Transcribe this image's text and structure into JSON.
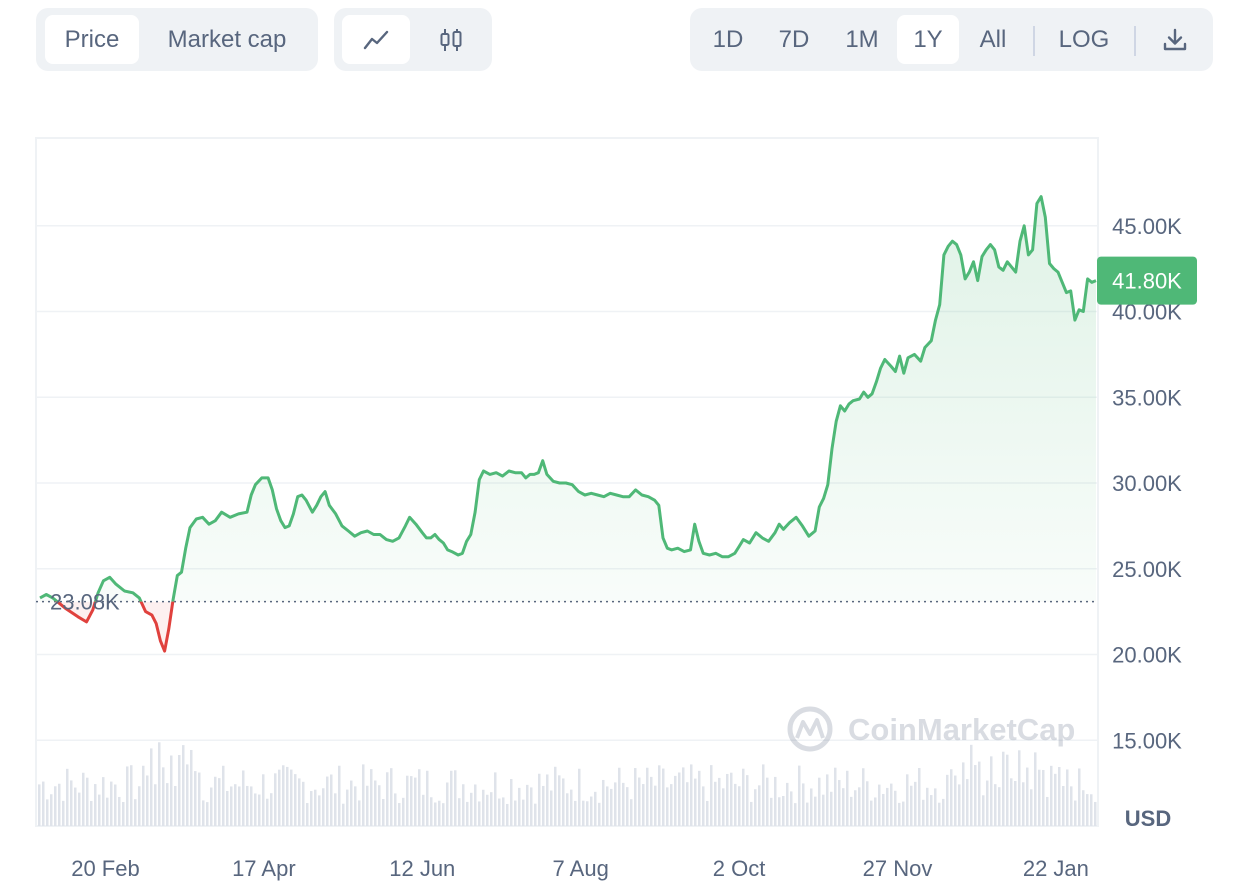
{
  "toolbar": {
    "metric_tabs": [
      "Price",
      "Market cap"
    ],
    "active_metric": "Price",
    "chart_types": [
      "line-chart-icon",
      "candlestick-icon"
    ],
    "active_chart_type": "line-chart-icon",
    "ranges": [
      "1D",
      "7D",
      "1M",
      "1Y",
      "All"
    ],
    "active_range": "1Y",
    "log_label": "LOG",
    "download_icon": "download-icon"
  },
  "colors": {
    "up": "#4fb877",
    "down": "#e0413d",
    "grid": "#eff2f5",
    "text": "#58667e",
    "badge": "#4fb877"
  },
  "chart_data": {
    "type": "area",
    "currency_label": "USD",
    "watermark": "CoinMarketCap",
    "baseline_label": "23.08K",
    "baseline_value": 23080,
    "current_label": "41.80K",
    "current_value": 41800,
    "ylim": [
      10000,
      50000
    ],
    "y_ticks": [
      15000,
      20000,
      25000,
      30000,
      35000,
      40000,
      45000
    ],
    "y_tick_labels": [
      "15.00K",
      "20.00K",
      "25.00K",
      "30.00K",
      "35.00K",
      "40.00K",
      "45.00K"
    ],
    "x_tick_labels": [
      "20 Feb",
      "17 Apr",
      "12 Jun",
      "7 Aug",
      "2 Oct",
      "27 Nov",
      "22 Jan"
    ],
    "x_tick_positions": [
      0.062,
      0.212,
      0.362,
      0.512,
      0.662,
      0.812,
      0.962
    ],
    "series": [
      {
        "points": [
          [
            0.0,
            23300
          ],
          [
            0.006,
            23500
          ],
          [
            0.012,
            23300
          ],
          [
            0.024,
            22700
          ],
          [
            0.036,
            22200
          ],
          [
            0.044,
            21900
          ],
          [
            0.05,
            22600
          ],
          [
            0.055,
            23600
          ],
          [
            0.06,
            24300
          ],
          [
            0.066,
            24500
          ],
          [
            0.072,
            24100
          ],
          [
            0.08,
            23700
          ],
          [
            0.088,
            23600
          ],
          [
            0.094,
            23300
          ],
          [
            0.1,
            22500
          ],
          [
            0.106,
            22300
          ],
          [
            0.11,
            21800
          ],
          [
            0.114,
            20800
          ],
          [
            0.118,
            20200
          ],
          [
            0.122,
            21500
          ],
          [
            0.126,
            23200
          ],
          [
            0.13,
            24600
          ],
          [
            0.134,
            24800
          ],
          [
            0.138,
            26200
          ],
          [
            0.142,
            27400
          ],
          [
            0.148,
            27900
          ],
          [
            0.154,
            28000
          ],
          [
            0.16,
            27600
          ],
          [
            0.166,
            27800
          ],
          [
            0.172,
            28300
          ],
          [
            0.18,
            28000
          ],
          [
            0.188,
            28200
          ],
          [
            0.196,
            28300
          ],
          [
            0.2,
            29300
          ],
          [
            0.204,
            29900
          ],
          [
            0.21,
            30300
          ],
          [
            0.216,
            30300
          ],
          [
            0.22,
            29600
          ],
          [
            0.224,
            28500
          ],
          [
            0.228,
            27800
          ],
          [
            0.232,
            27400
          ],
          [
            0.236,
            27500
          ],
          [
            0.24,
            28200
          ],
          [
            0.244,
            29200
          ],
          [
            0.248,
            29300
          ],
          [
            0.252,
            29000
          ],
          [
            0.258,
            28300
          ],
          [
            0.262,
            28700
          ],
          [
            0.266,
            29200
          ],
          [
            0.27,
            29500
          ],
          [
            0.274,
            28700
          ],
          [
            0.28,
            28200
          ],
          [
            0.286,
            27500
          ],
          [
            0.292,
            27200
          ],
          [
            0.298,
            26900
          ],
          [
            0.304,
            27100
          ],
          [
            0.31,
            27200
          ],
          [
            0.316,
            27000
          ],
          [
            0.322,
            27000
          ],
          [
            0.328,
            26700
          ],
          [
            0.334,
            26600
          ],
          [
            0.34,
            26800
          ],
          [
            0.346,
            27500
          ],
          [
            0.35,
            28000
          ],
          [
            0.356,
            27600
          ],
          [
            0.362,
            27100
          ],
          [
            0.366,
            26800
          ],
          [
            0.37,
            26800
          ],
          [
            0.374,
            27000
          ],
          [
            0.378,
            26700
          ],
          [
            0.382,
            26500
          ],
          [
            0.386,
            26100
          ],
          [
            0.39,
            26000
          ],
          [
            0.396,
            25800
          ],
          [
            0.4,
            25900
          ],
          [
            0.404,
            26600
          ],
          [
            0.408,
            27000
          ],
          [
            0.412,
            28300
          ],
          [
            0.416,
            30200
          ],
          [
            0.42,
            30700
          ],
          [
            0.426,
            30500
          ],
          [
            0.432,
            30600
          ],
          [
            0.438,
            30400
          ],
          [
            0.444,
            30700
          ],
          [
            0.45,
            30600
          ],
          [
            0.456,
            30600
          ],
          [
            0.46,
            30300
          ],
          [
            0.464,
            30500
          ],
          [
            0.468,
            30500
          ],
          [
            0.472,
            30600
          ],
          [
            0.476,
            31300
          ],
          [
            0.48,
            30500
          ],
          [
            0.486,
            30100
          ],
          [
            0.492,
            30000
          ],
          [
            0.498,
            30000
          ],
          [
            0.504,
            29900
          ],
          [
            0.51,
            29500
          ],
          [
            0.516,
            29300
          ],
          [
            0.522,
            29400
          ],
          [
            0.528,
            29300
          ],
          [
            0.534,
            29200
          ],
          [
            0.54,
            29400
          ],
          [
            0.546,
            29300
          ],
          [
            0.552,
            29200
          ],
          [
            0.558,
            29200
          ],
          [
            0.564,
            29600
          ],
          [
            0.57,
            29300
          ],
          [
            0.576,
            29200
          ],
          [
            0.582,
            29000
          ],
          [
            0.586,
            28700
          ],
          [
            0.59,
            26800
          ],
          [
            0.594,
            26200
          ],
          [
            0.598,
            26100
          ],
          [
            0.604,
            26200
          ],
          [
            0.61,
            26000
          ],
          [
            0.616,
            26100
          ],
          [
            0.62,
            27600
          ],
          [
            0.624,
            26600
          ],
          [
            0.628,
            25900
          ],
          [
            0.634,
            25800
          ],
          [
            0.64,
            25900
          ],
          [
            0.646,
            25700
          ],
          [
            0.652,
            25700
          ],
          [
            0.658,
            25900
          ],
          [
            0.662,
            26300
          ],
          [
            0.666,
            26700
          ],
          [
            0.672,
            26500
          ],
          [
            0.678,
            27100
          ],
          [
            0.684,
            26800
          ],
          [
            0.69,
            26600
          ],
          [
            0.696,
            27100
          ],
          [
            0.7,
            27600
          ],
          [
            0.704,
            27300
          ],
          [
            0.71,
            27700
          ],
          [
            0.716,
            28000
          ],
          [
            0.722,
            27500
          ],
          [
            0.728,
            26900
          ],
          [
            0.734,
            27200
          ],
          [
            0.738,
            28600
          ],
          [
            0.742,
            29100
          ],
          [
            0.746,
            29900
          ],
          [
            0.75,
            32000
          ],
          [
            0.754,
            33600
          ],
          [
            0.758,
            34500
          ],
          [
            0.762,
            34200
          ],
          [
            0.766,
            34600
          ],
          [
            0.77,
            34800
          ],
          [
            0.776,
            34900
          ],
          [
            0.78,
            35300
          ],
          [
            0.784,
            35000
          ],
          [
            0.788,
            35200
          ],
          [
            0.792,
            35900
          ],
          [
            0.796,
            36700
          ],
          [
            0.8,
            37200
          ],
          [
            0.806,
            36800
          ],
          [
            0.81,
            36500
          ],
          [
            0.814,
            37400
          ],
          [
            0.818,
            36400
          ],
          [
            0.822,
            37300
          ],
          [
            0.828,
            37500
          ],
          [
            0.834,
            37100
          ],
          [
            0.838,
            37900
          ],
          [
            0.844,
            38300
          ],
          [
            0.848,
            39500
          ],
          [
            0.852,
            40400
          ],
          [
            0.856,
            43300
          ],
          [
            0.86,
            43800
          ],
          [
            0.864,
            44100
          ],
          [
            0.868,
            43900
          ],
          [
            0.872,
            43300
          ],
          [
            0.876,
            41900
          ],
          [
            0.88,
            42300
          ],
          [
            0.884,
            42900
          ],
          [
            0.888,
            41800
          ],
          [
            0.892,
            43200
          ],
          [
            0.896,
            43600
          ],
          [
            0.9,
            43900
          ],
          [
            0.904,
            43600
          ],
          [
            0.908,
            42600
          ],
          [
            0.912,
            42400
          ],
          [
            0.916,
            42900
          ],
          [
            0.92,
            42600
          ],
          [
            0.924,
            42300
          ],
          [
            0.928,
            44100
          ],
          [
            0.932,
            45000
          ],
          [
            0.936,
            43300
          ],
          [
            0.94,
            43600
          ],
          [
            0.944,
            46300
          ],
          [
            0.948,
            46700
          ],
          [
            0.952,
            45500
          ],
          [
            0.956,
            42800
          ],
          [
            0.96,
            42500
          ],
          [
            0.964,
            42300
          ],
          [
            0.968,
            41700
          ],
          [
            0.972,
            41100
          ],
          [
            0.976,
            41200
          ],
          [
            0.98,
            39500
          ],
          [
            0.984,
            40100
          ],
          [
            0.988,
            40000
          ],
          [
            0.992,
            41900
          ],
          [
            0.996,
            41700
          ],
          [
            1.0,
            41800
          ]
        ]
      }
    ]
  }
}
